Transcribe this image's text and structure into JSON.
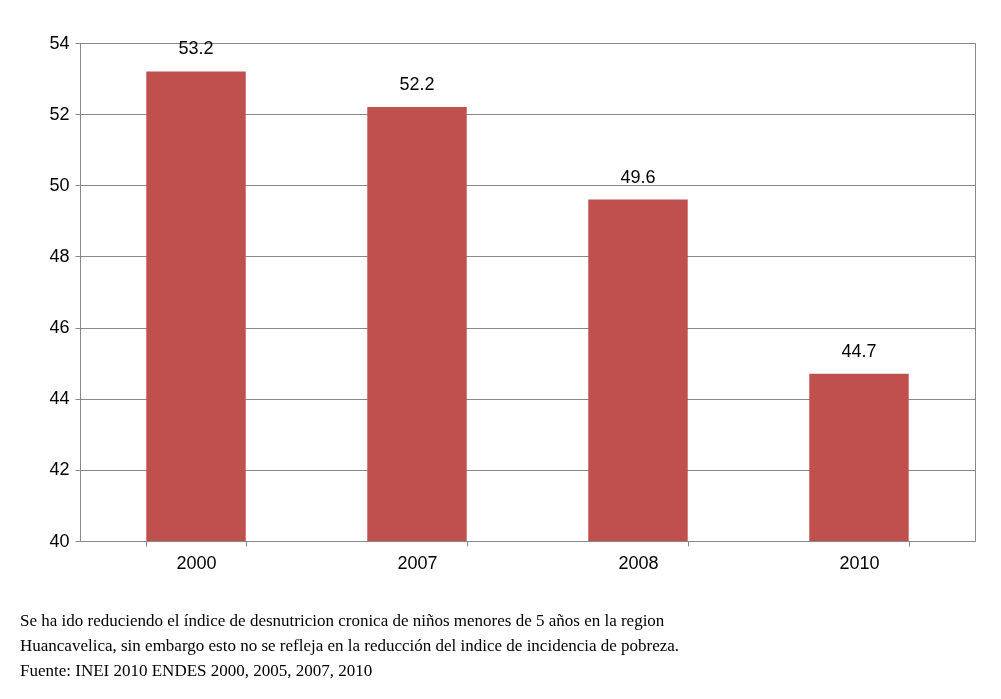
{
  "chart_data": {
    "type": "bar",
    "categories": [
      "2000",
      "2007",
      "2008",
      "2010"
    ],
    "values": [
      53.2,
      52.2,
      49.6,
      44.7
    ],
    "color": "#c0504d",
    "ylim": [
      40,
      54
    ],
    "yticks": [
      40,
      42,
      44,
      46,
      48,
      50,
      52,
      54
    ],
    "grid": "y",
    "data_labels": true,
    "annotations": [
      "Se ha ido reduciendo el índice de desnutricion cronica de niños menores de 5 años en la region",
      "Huancavelica, sin embargo esto no se refleja en la reducción del indice de incidencia de pobreza.",
      "Fuente: INEI 2010 ENDES 2000, 2005, 2007, 2010"
    ]
  }
}
